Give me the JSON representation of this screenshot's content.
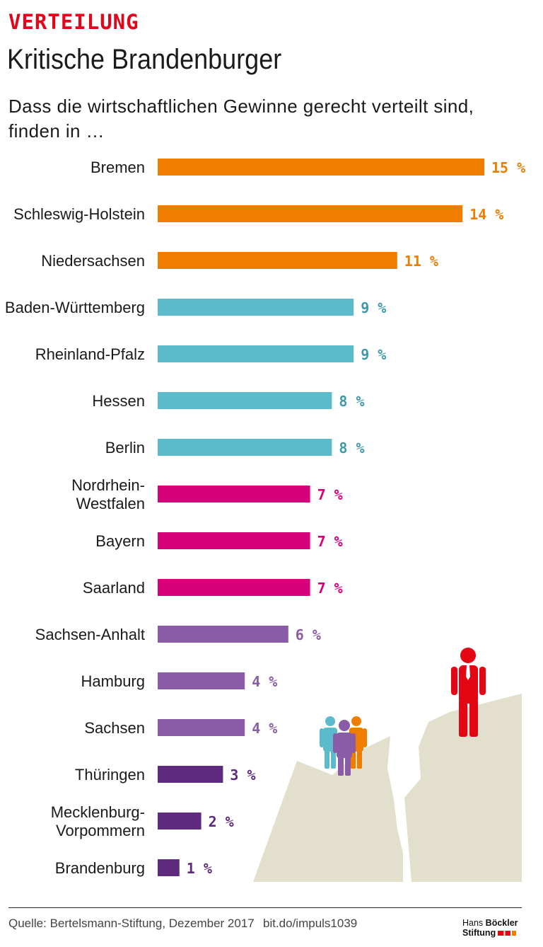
{
  "header": {
    "kicker": "VERTEILUNG",
    "title": "Kritische Brandenburger",
    "subtitle_line1": "Dass die wirtschaftlichen Gewinne gerecht verteilt sind,",
    "subtitle_line2": "finden in …"
  },
  "colors": {
    "kicker": "#e1061a",
    "group_high": "#ee7d00",
    "group_mid": "#5cbbca",
    "group_midlow": "#d6007a",
    "group_low": "#8a5ba6",
    "group_lowest": "#5e2a7e",
    "label_mid": "#3e9aab",
    "cliff": "#e2dfcc",
    "person_red": "#e30613"
  },
  "chart_data": {
    "type": "bar",
    "orientation": "horizontal",
    "title": "Kritische Brandenburger",
    "subtitle": "Dass die wirtschaftlichen Gewinne gerecht verteilt sind, finden in …",
    "unit": "%",
    "xlim": [
      0,
      15
    ],
    "categories": [
      "Bremen",
      "Schleswig-Holstein",
      "Niedersachsen",
      "Baden-Württemberg",
      "Rheinland-Pfalz",
      "Hessen",
      "Berlin",
      "Nordrhein-Westfalen",
      "Bayern",
      "Saarland",
      "Sachsen-Anhalt",
      "Hamburg",
      "Sachsen",
      "Thüringen",
      "Mecklenburg-Vorpommern",
      "Brandenburg"
    ],
    "label_lines": [
      [
        "Bremen"
      ],
      [
        "Schleswig-Holstein"
      ],
      [
        "Niedersachsen"
      ],
      [
        "Baden-Württemberg"
      ],
      [
        "Rheinland-Pfalz"
      ],
      [
        "Hessen"
      ],
      [
        "Berlin"
      ],
      [
        "Nordrhein-",
        "Westfalen"
      ],
      [
        "Bayern"
      ],
      [
        "Saarland"
      ],
      [
        "Sachsen-Anhalt"
      ],
      [
        "Hamburg"
      ],
      [
        "Sachsen"
      ],
      [
        "Thüringen"
      ],
      [
        "Mecklenburg-",
        "Vorpommern"
      ],
      [
        "Brandenburg"
      ]
    ],
    "values": [
      15,
      14,
      11,
      9,
      9,
      8,
      8,
      7,
      7,
      7,
      6,
      4,
      4,
      3,
      2,
      1
    ],
    "value_labels": [
      "15 %",
      "14 %",
      "11 %",
      "9 %",
      "9 %",
      "8 %",
      "8 %",
      "7 %",
      "7 %",
      "7 %",
      "6 %",
      "4 %",
      "4 %",
      "3 %",
      "2 %",
      "1 %"
    ],
    "groups": [
      "group_high",
      "group_high",
      "group_high",
      "group_mid",
      "group_mid",
      "group_mid",
      "group_mid",
      "group_midlow",
      "group_midlow",
      "group_midlow",
      "group_low",
      "group_low",
      "group_low",
      "group_lowest",
      "group_lowest",
      "group_lowest"
    ]
  },
  "footer": {
    "source": "Quelle: Bertelsmann-Stiftung, Dezember 2017",
    "link": "bit.do/impuls1039",
    "logo_line1_a": "Hans",
    "logo_line1_b": "Böckler",
    "logo_line2": "Stiftung"
  }
}
